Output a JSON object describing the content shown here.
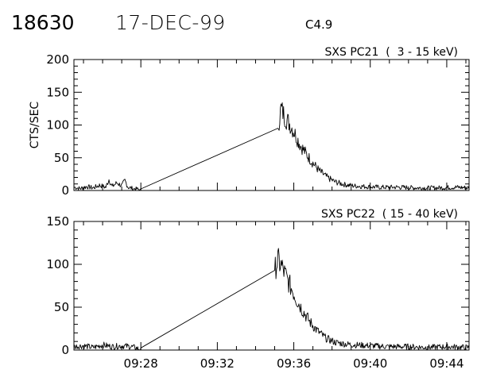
{
  "header": {
    "event_id": "18630",
    "date": "17-DEC-99",
    "flare_class": "C4.9"
  },
  "chart_data": [
    {
      "type": "line",
      "title": "SXS PC21  (  3 - 15 keV)",
      "ylabel": "CTS/SEC",
      "xlabel": "",
      "xlim": [
        "09:24:30",
        "09:45:10"
      ],
      "ylim": [
        0,
        200
      ],
      "yticks": [
        0,
        50,
        100,
        150,
        200
      ],
      "xticks": [
        "09:28",
        "09:32",
        "09:36",
        "09:40",
        "09:44"
      ],
      "grid": false,
      "series": [
        {
          "points": [
            [
              "09:24:30",
              5
            ],
            [
              "09:24:50",
              3
            ],
            [
              "09:25:10",
              6
            ],
            [
              "09:25:30",
              4
            ],
            [
              "09:25:50",
              8
            ],
            [
              "09:26:10",
              5
            ],
            [
              "09:26:20",
              17
            ],
            [
              "09:26:30",
              6
            ],
            [
              "09:26:45",
              12
            ],
            [
              "09:27:00",
              7
            ],
            [
              "09:27:10",
              15
            ],
            [
              "09:27:20",
              5
            ],
            [
              "09:27:35",
              3
            ],
            [
              "09:27:50",
              2
            ],
            [
              "09:28:00",
              0
            ],
            [
              "09:35:10",
              95
            ],
            [
              "09:35:20",
              125
            ],
            [
              "09:35:35",
              110
            ],
            [
              "09:35:50",
              100
            ],
            [
              "09:36:05",
              85
            ],
            [
              "09:36:20",
              70
            ],
            [
              "09:36:40",
              55
            ],
            [
              "09:37:00",
              42
            ],
            [
              "09:37:20",
              30
            ],
            [
              "09:37:45",
              20
            ],
            [
              "09:38:10",
              13
            ],
            [
              "09:38:40",
              9
            ],
            [
              "09:39:10",
              7
            ],
            [
              "09:39:45",
              6
            ],
            [
              "09:40:30",
              5
            ],
            [
              "09:41:30",
              5
            ],
            [
              "09:42:30",
              4
            ],
            [
              "09:43:30",
              4
            ],
            [
              "09:44:30",
              5
            ],
            [
              "09:45:10",
              4
            ]
          ]
        }
      ]
    },
    {
      "type": "line",
      "title": "SXS PC22  ( 15 - 40 keV)",
      "ylabel": "",
      "xlabel": "",
      "xlim": [
        "09:24:30",
        "09:45:10"
      ],
      "ylim": [
        0,
        150
      ],
      "yticks": [
        0,
        50,
        100,
        150
      ],
      "xticks": [
        "09:28",
        "09:32",
        "09:36",
        "09:40",
        "09:44"
      ],
      "grid": false,
      "series": [
        {
          "points": [
            [
              "09:24:30",
              4
            ],
            [
              "09:25:00",
              5
            ],
            [
              "09:25:30",
              3
            ],
            [
              "09:26:00",
              6
            ],
            [
              "09:26:30",
              4
            ],
            [
              "09:27:00",
              5
            ],
            [
              "09:27:30",
              4
            ],
            [
              "09:27:50",
              2
            ],
            [
              "09:28:00",
              0
            ],
            [
              "09:35:00",
              93
            ],
            [
              "09:35:10",
              105
            ],
            [
              "09:35:25",
              95
            ],
            [
              "09:35:40",
              82
            ],
            [
              "09:35:55",
              70
            ],
            [
              "09:36:10",
              58
            ],
            [
              "09:36:30",
              45
            ],
            [
              "09:36:50",
              33
            ],
            [
              "09:37:15",
              22
            ],
            [
              "09:37:40",
              14
            ],
            [
              "09:38:10",
              9
            ],
            [
              "09:38:40",
              7
            ],
            [
              "09:39:15",
              6
            ],
            [
              "09:40:00",
              5
            ],
            [
              "09:41:00",
              4
            ],
            [
              "09:42:00",
              4
            ],
            [
              "09:43:00",
              3
            ],
            [
              "09:44:00",
              4
            ],
            [
              "09:45:10",
              3
            ]
          ]
        }
      ]
    }
  ]
}
